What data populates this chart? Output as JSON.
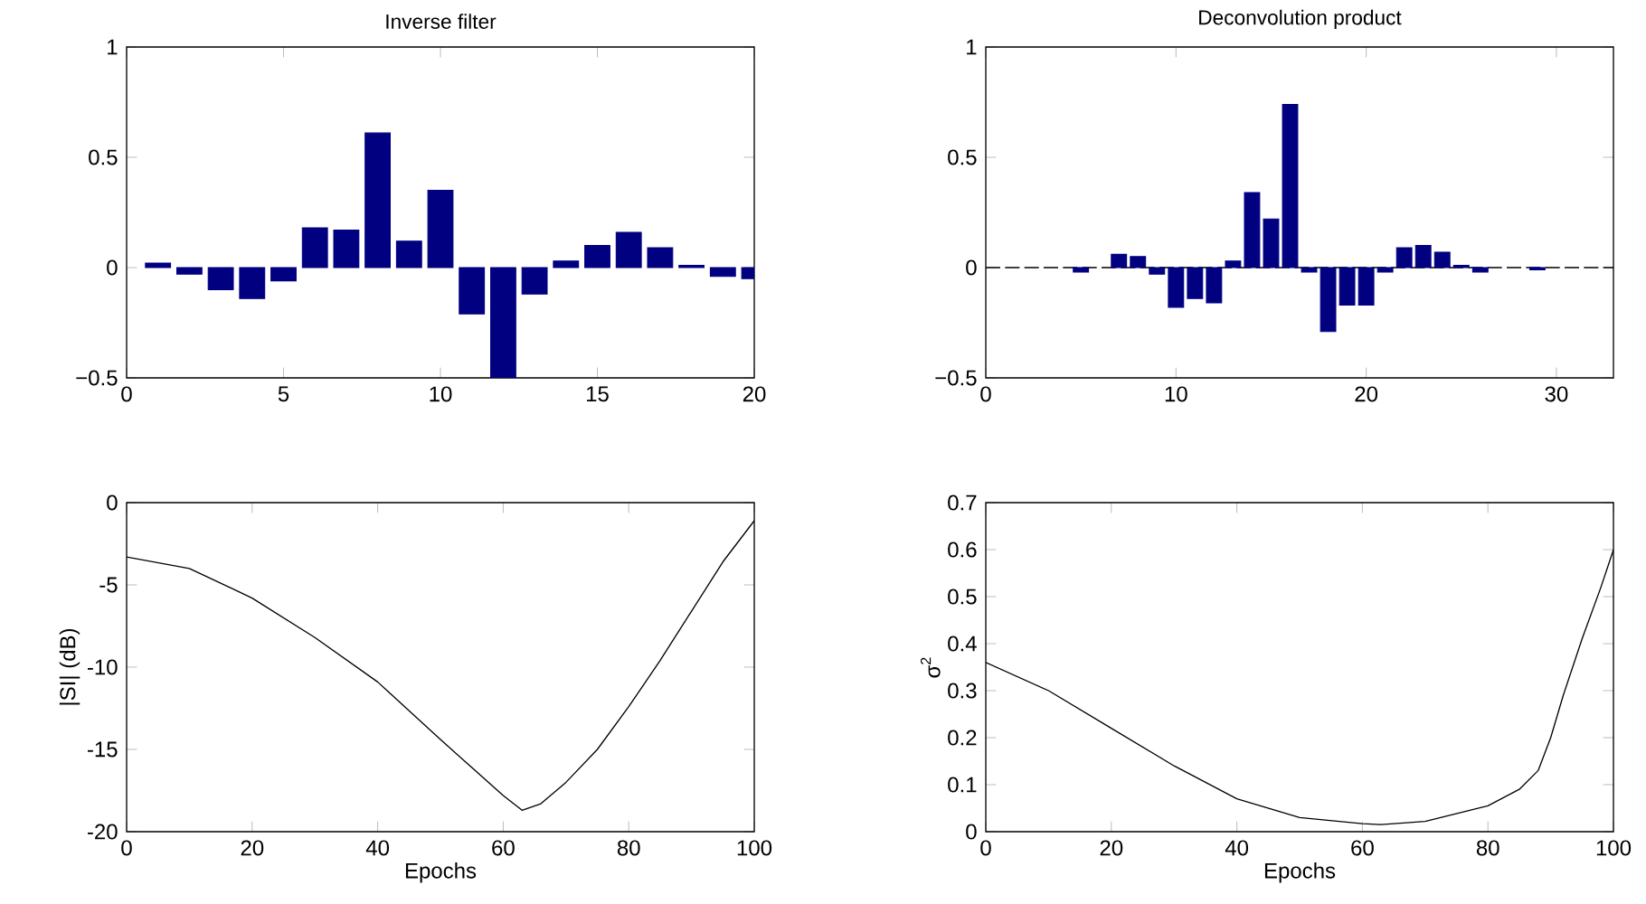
{
  "chart_data": [
    {
      "type": "bar",
      "title": "Inverse filter",
      "color": "#000080",
      "x": [
        1,
        2,
        3,
        4,
        5,
        6,
        7,
        8,
        9,
        10,
        11,
        12,
        13,
        14,
        15,
        16,
        17,
        18,
        19,
        20
      ],
      "values": [
        0.02,
        -0.03,
        -0.1,
        -0.14,
        -0.06,
        0.18,
        0.17,
        0.61,
        0.12,
        0.35,
        -0.21,
        -0.5,
        -0.12,
        0.03,
        0.1,
        0.16,
        0.09,
        0.01,
        -0.04,
        -0.05
      ],
      "xlim": [
        0,
        20
      ],
      "ylim": [
        -0.5,
        1
      ],
      "xticks": [
        0,
        5,
        10,
        15,
        20
      ],
      "yticks": [
        {
          "value": -0.5,
          "label": "−0.5"
        },
        0,
        0.5,
        1
      ]
    },
    {
      "type": "bar",
      "title": "Deconvolution product",
      "color": "#000080",
      "x": [
        1,
        2,
        3,
        4,
        5,
        6,
        7,
        8,
        9,
        10,
        11,
        12,
        13,
        14,
        15,
        16,
        17,
        18,
        19,
        20,
        21,
        22,
        23,
        24,
        25,
        26,
        27,
        28,
        29,
        30,
        31,
        32,
        33
      ],
      "values": [
        0,
        0,
        0,
        0,
        -0.02,
        0,
        0.06,
        0.05,
        -0.03,
        -0.18,
        -0.14,
        -0.16,
        0.03,
        0.34,
        0.22,
        0.74,
        -0.02,
        -0.29,
        -0.17,
        -0.17,
        -0.02,
        0.09,
        0.1,
        0.07,
        0.01,
        -0.02,
        0,
        0,
        -0.01,
        0,
        0,
        0,
        0
      ],
      "ref_lines": [
        {
          "axis": "y",
          "value": 0,
          "color": "#000000",
          "line_style": "dashed"
        }
      ],
      "xlim": [
        0,
        33
      ],
      "ylim": [
        -0.5,
        1
      ],
      "xticks": [
        0,
        10,
        20,
        30
      ],
      "yticks": [
        {
          "value": -0.5,
          "label": "−0.5"
        },
        0,
        0.5,
        1
      ]
    },
    {
      "type": "line",
      "xlabel": "Epochs",
      "ylabel": "|SI| (dB)",
      "color": "#000000",
      "x": [
        0,
        10,
        20,
        30,
        40,
        50,
        55,
        60,
        63,
        66,
        70,
        75,
        80,
        85,
        90,
        95,
        100
      ],
      "values": [
        -3.3,
        -4,
        -5.8,
        -8.2,
        -10.9,
        -14.4,
        -16.1,
        -17.8,
        -18.7,
        -18.3,
        -17,
        -15,
        -12.4,
        -9.6,
        -6.6,
        -3.6,
        -1.1
      ],
      "xlim": [
        0,
        100
      ],
      "ylim": [
        -20,
        0
      ],
      "xticks": [
        0,
        20,
        40,
        60,
        80,
        100
      ],
      "yticks": [
        -20,
        -15,
        -10,
        -5,
        0
      ]
    },
    {
      "type": "line",
      "xlabel": "Epochs",
      "ylabel": "σ$^{2}$",
      "color": "#000000",
      "x": [
        0,
        10,
        20,
        30,
        40,
        50,
        60,
        63,
        70,
        80,
        85,
        88,
        90,
        92,
        95,
        98,
        100
      ],
      "values": [
        0.36,
        0.3,
        0.22,
        0.14,
        0.07,
        0.03,
        0.017,
        0.015,
        0.022,
        0.055,
        0.09,
        0.13,
        0.2,
        0.29,
        0.41,
        0.52,
        0.6
      ],
      "xlim": [
        0,
        100
      ],
      "ylim": [
        0,
        0.7
      ],
      "xticks": [
        0,
        20,
        40,
        60,
        80,
        100
      ],
      "yticks": [
        0,
        0.1,
        0.2,
        0.3,
        0.4,
        0.5,
        0.6,
        0.7
      ]
    }
  ]
}
